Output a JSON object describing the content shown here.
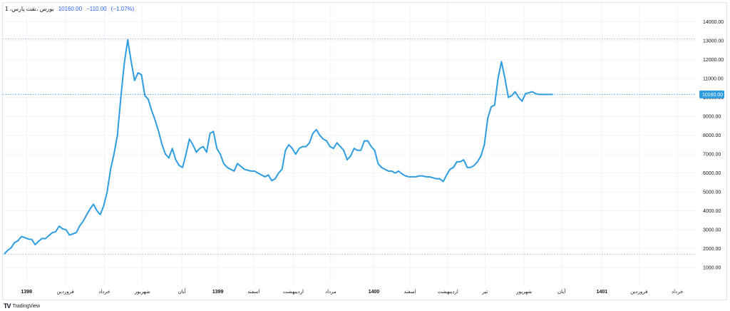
{
  "legend": {
    "symbol": "بورس ،‌نفت پارس، 1",
    "price": "10160.00",
    "change": "−110.00",
    "change_pct": "(−1.07%)"
  },
  "footer": {
    "logo": "𝟏𝟕",
    "brand": "TradingView"
  },
  "colors": {
    "line": "#2e9ddf",
    "grid": "#f0f3fa",
    "dotted": "#9fb4d8",
    "badge": "#2e9ddf"
  },
  "chart_data": {
    "type": "line",
    "title": "",
    "xlabel": "",
    "ylabel": "",
    "ylim": [
      400,
      14400
    ],
    "grid": true,
    "y_ticks": [
      "14000.00",
      "13000.00",
      "12000.00",
      "11000.00",
      "10000.00",
      "9000.00",
      "8000.00",
      "7000.00",
      "6000.00",
      "5000.00",
      "4000.00",
      "3000.00",
      "2000.00",
      "1000.00"
    ],
    "y_tick_values": [
      14000,
      13000,
      12000,
      11000,
      10000,
      9000,
      8000,
      7000,
      6000,
      5000,
      4000,
      3000,
      2000,
      1000
    ],
    "x_ticks": [
      "1398",
      "فروردین",
      "خرداد",
      "شهریور",
      "آبان",
      "1399",
      "اسفند",
      "اردیبهشت",
      "مرداد",
      "1400",
      "اسفند",
      "اردیبهشت",
      "تیر",
      "شهریور",
      "آبان",
      "1401",
      "فروردین",
      "خرداد"
    ],
    "x_tick_pos": [
      6.5,
      17.8,
      29.2,
      40.3,
      51.8,
      62.3,
      72.7,
      84.3,
      95.2,
      107.8,
      118.3,
      129.4,
      140.2,
      151.6,
      162.5,
      174.3,
      185.1,
      196.3
    ],
    "x_tick_bold": [
      true,
      false,
      false,
      false,
      false,
      true,
      false,
      false,
      false,
      true,
      false,
      false,
      false,
      false,
      false,
      true,
      false,
      false
    ],
    "current_price": 10160,
    "current_price_label": "10160.00",
    "high_line": 13100,
    "low_line": 1700,
    "series": [
      {
        "x": [
          0.0,
          1.0,
          2.0,
          3.0,
          4.0,
          5.0,
          6.0,
          7.0,
          8.0,
          9.0,
          10.0,
          11.0,
          12.0,
          13.0,
          14.0,
          15.0,
          16.0,
          17.0,
          18.0,
          19.0,
          20.0,
          21.0,
          22.0,
          23.0,
          24.0,
          25.0,
          26.0,
          27.0,
          28.0,
          29.0,
          30.0,
          31.0,
          32.0,
          33.0,
          34.0,
          35.0,
          36.0,
          37.0,
          38.0,
          39.0,
          40.0,
          41.0,
          42.0,
          43.0,
          44.0,
          45.0,
          46.0,
          47.0,
          48.0,
          49.0,
          50.0,
          51.0,
          52.0,
          53.0,
          54.0,
          55.0,
          56.0,
          57.0,
          58.0,
          59.0,
          60.0,
          61.0,
          62.0,
          63.0,
          64.0,
          65.0,
          66.0,
          67.0,
          68.0,
          69.0,
          70.0,
          71.0,
          72.0,
          73.0,
          74.0,
          75.0,
          76.0,
          77.0,
          78.0,
          79.0,
          80.0,
          81.0,
          82.0,
          83.0,
          84.0,
          85.0,
          86.0,
          87.0,
          88.0,
          89.0,
          90.0,
          91.0,
          92.0,
          93.0,
          94.0,
          95.0,
          96.0,
          97.0,
          98.0,
          99.0,
          100.0,
          101.0,
          102.0,
          103.0,
          104.0,
          105.0,
          106.0,
          107.0,
          108.0,
          109.0,
          110.0,
          111.0,
          112.0,
          113.0,
          114.0,
          115.0,
          116.0,
          117.0,
          118.0,
          119.0,
          120.0,
          121.0,
          122.0,
          123.0,
          124.0,
          125.0,
          126.0,
          127.0,
          128.0,
          129.0,
          130.0,
          131.0,
          132.0,
          133.0,
          134.0,
          135.0,
          136.0,
          137.0,
          138.0,
          139.0,
          140.0,
          141.0,
          142.0,
          143.0,
          144.0,
          145.0,
          146.0,
          147.0,
          148.0,
          149.0,
          150.0,
          151.0,
          152.0,
          153.0,
          154.0,
          155.0,
          156.0,
          157.0,
          158.0,
          159.0,
          160.0,
          161.0,
          162.0,
          163.0,
          164.0,
          165.0,
          166.0,
          167.0,
          168.0,
          169.0,
          170.0,
          171.0,
          172.0,
          173.0,
          174.0,
          175.0,
          176.0,
          177.0,
          178.0,
          179.0,
          180.0,
          181.0,
          182.0,
          183.0,
          184.0,
          185.0,
          186.0,
          187.0,
          188.0,
          189.0,
          190.0,
          191.0,
          192.0,
          193.0,
          194.0,
          195.0,
          196.0,
          197.0,
          198.0,
          199.0,
          200.0
        ],
        "y": [
          1720,
          1910,
          2050,
          2320,
          2420,
          2640,
          2580,
          2510,
          2490,
          2210,
          2390,
          2540,
          2530,
          2690,
          2840,
          2900,
          3190,
          3050,
          3000,
          2720,
          2780,
          2850,
          3200,
          3450,
          3780,
          4100,
          4350,
          4010,
          3800,
          4280,
          5000,
          6200,
          7000,
          8000,
          10000,
          11800,
          13050,
          11900,
          10900,
          11300,
          11200,
          10100,
          9900,
          9300,
          8800,
          8200,
          7500,
          7000,
          6800,
          7300,
          6700,
          6400,
          6300,
          7000,
          7800,
          7500,
          7100,
          7300,
          7400,
          7100,
          8100,
          8200,
          7300,
          7000,
          6500,
          6300,
          6200,
          6100,
          6500,
          6350,
          6200,
          6150,
          6100,
          6100,
          6000,
          5900,
          5800,
          5900,
          5600,
          5700,
          6000,
          6200,
          7200,
          7500,
          7300,
          7000,
          7300,
          7400,
          7400,
          7600,
          8100,
          8300,
          8000,
          7800,
          7700,
          7400,
          7300,
          7600,
          7400,
          7200,
          6700,
          6900,
          7300,
          7200,
          7200,
          7700,
          7700,
          7400,
          7200,
          6500,
          6300,
          6200,
          6100,
          6100,
          6000,
          6100,
          5950,
          5850,
          5800,
          5800,
          5800,
          5850,
          5850,
          5800,
          5800,
          5750,
          5700,
          5700,
          5550,
          5900,
          6200,
          6300,
          6600,
          6600,
          6700,
          6300,
          6300,
          6400,
          6600,
          6900,
          7500,
          8900,
          9500,
          9600,
          11000,
          11900,
          11000,
          10000,
          10100,
          10300,
          10000,
          9800,
          10200,
          10250,
          10300,
          10200,
          10160,
          10160,
          10160,
          10160,
          10160,
          10160,
          10160,
          10160,
          10160,
          10160,
          10160,
          10160,
          10160,
          10160,
          10160,
          10160,
          10160,
          10160,
          10160,
          10160,
          10160,
          10160,
          10160,
          10160,
          10160,
          10160,
          10160,
          10160,
          10160,
          10160,
          10160,
          10160,
          10160,
          10160,
          10160,
          10160,
          10160,
          10160,
          10160,
          10160,
          10160,
          10160,
          10160,
          10160,
          10160
        ]
      }
    ]
  }
}
